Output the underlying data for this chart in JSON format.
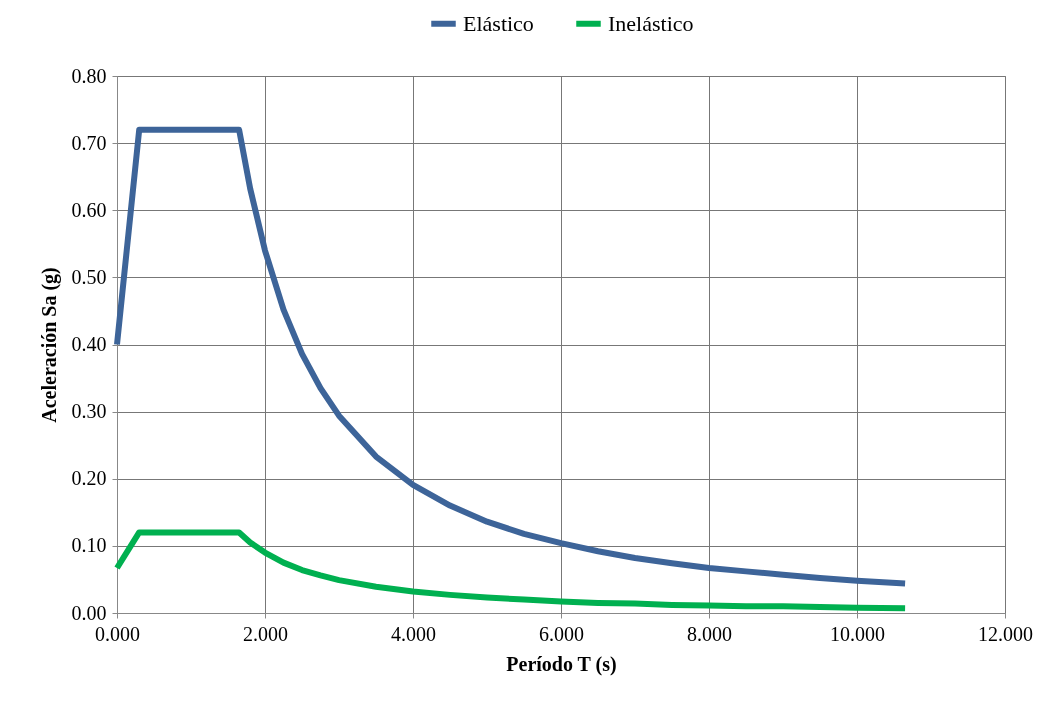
{
  "chart_data": {
    "type": "line",
    "xlabel": "Período T (s)",
    "ylabel": "Aceleración Sa (g)",
    "x": [
      0,
      0.3,
      1.65,
      1.8,
      2.0,
      2.25,
      2.5,
      2.75,
      3.0,
      3.5,
      4.0,
      4.5,
      5.0,
      5.5,
      6.0,
      6.5,
      7.0,
      7.5,
      8.0,
      8.5,
      9.0,
      9.5,
      10.0,
      10.65
    ],
    "series": [
      {
        "name": "Elástico",
        "color": "#3d6499",
        "values": [
          0.4,
          0.72,
          0.72,
          0.632,
          0.54,
          0.452,
          0.386,
          0.335,
          0.294,
          0.233,
          0.191,
          0.16,
          0.136,
          0.118,
          0.104,
          0.092,
          0.082,
          0.074,
          0.067,
          0.062,
          0.057,
          0.052,
          0.048,
          0.044
        ]
      },
      {
        "name": "Inelástico",
        "color": "#00b050",
        "values": [
          0.067,
          0.12,
          0.12,
          0.105,
          0.09,
          0.075,
          0.064,
          0.056,
          0.049,
          0.039,
          0.032,
          0.027,
          0.023,
          0.02,
          0.017,
          0.015,
          0.014,
          0.012,
          0.011,
          0.01,
          0.01,
          0.009,
          0.008,
          0.007
        ]
      }
    ],
    "xlim": [
      0,
      12
    ],
    "xticks": [
      {
        "value": 0,
        "label": "0.000"
      },
      {
        "value": 2,
        "label": "2.000"
      },
      {
        "value": 4,
        "label": "4.000"
      },
      {
        "value": 6,
        "label": "6.000"
      },
      {
        "value": 8,
        "label": "8.000"
      },
      {
        "value": 10,
        "label": "10.000"
      },
      {
        "value": 12,
        "label": "12.000"
      }
    ],
    "ylim": [
      0,
      0.8
    ],
    "yticks": [
      {
        "value": 0,
        "label": "0.00"
      },
      {
        "value": 0.1,
        "label": "0.10"
      },
      {
        "value": 0.2,
        "label": "0.20"
      },
      {
        "value": 0.3,
        "label": "0.30"
      },
      {
        "value": 0.4,
        "label": "0.40"
      },
      {
        "value": 0.5,
        "label": "0.50"
      },
      {
        "value": 0.6,
        "label": "0.60"
      },
      {
        "value": 0.7,
        "label": "0.70"
      },
      {
        "value": 0.8,
        "label": "0.80"
      }
    ],
    "grid": true,
    "legend": "top",
    "marker": "none",
    "line_style": "solid"
  }
}
